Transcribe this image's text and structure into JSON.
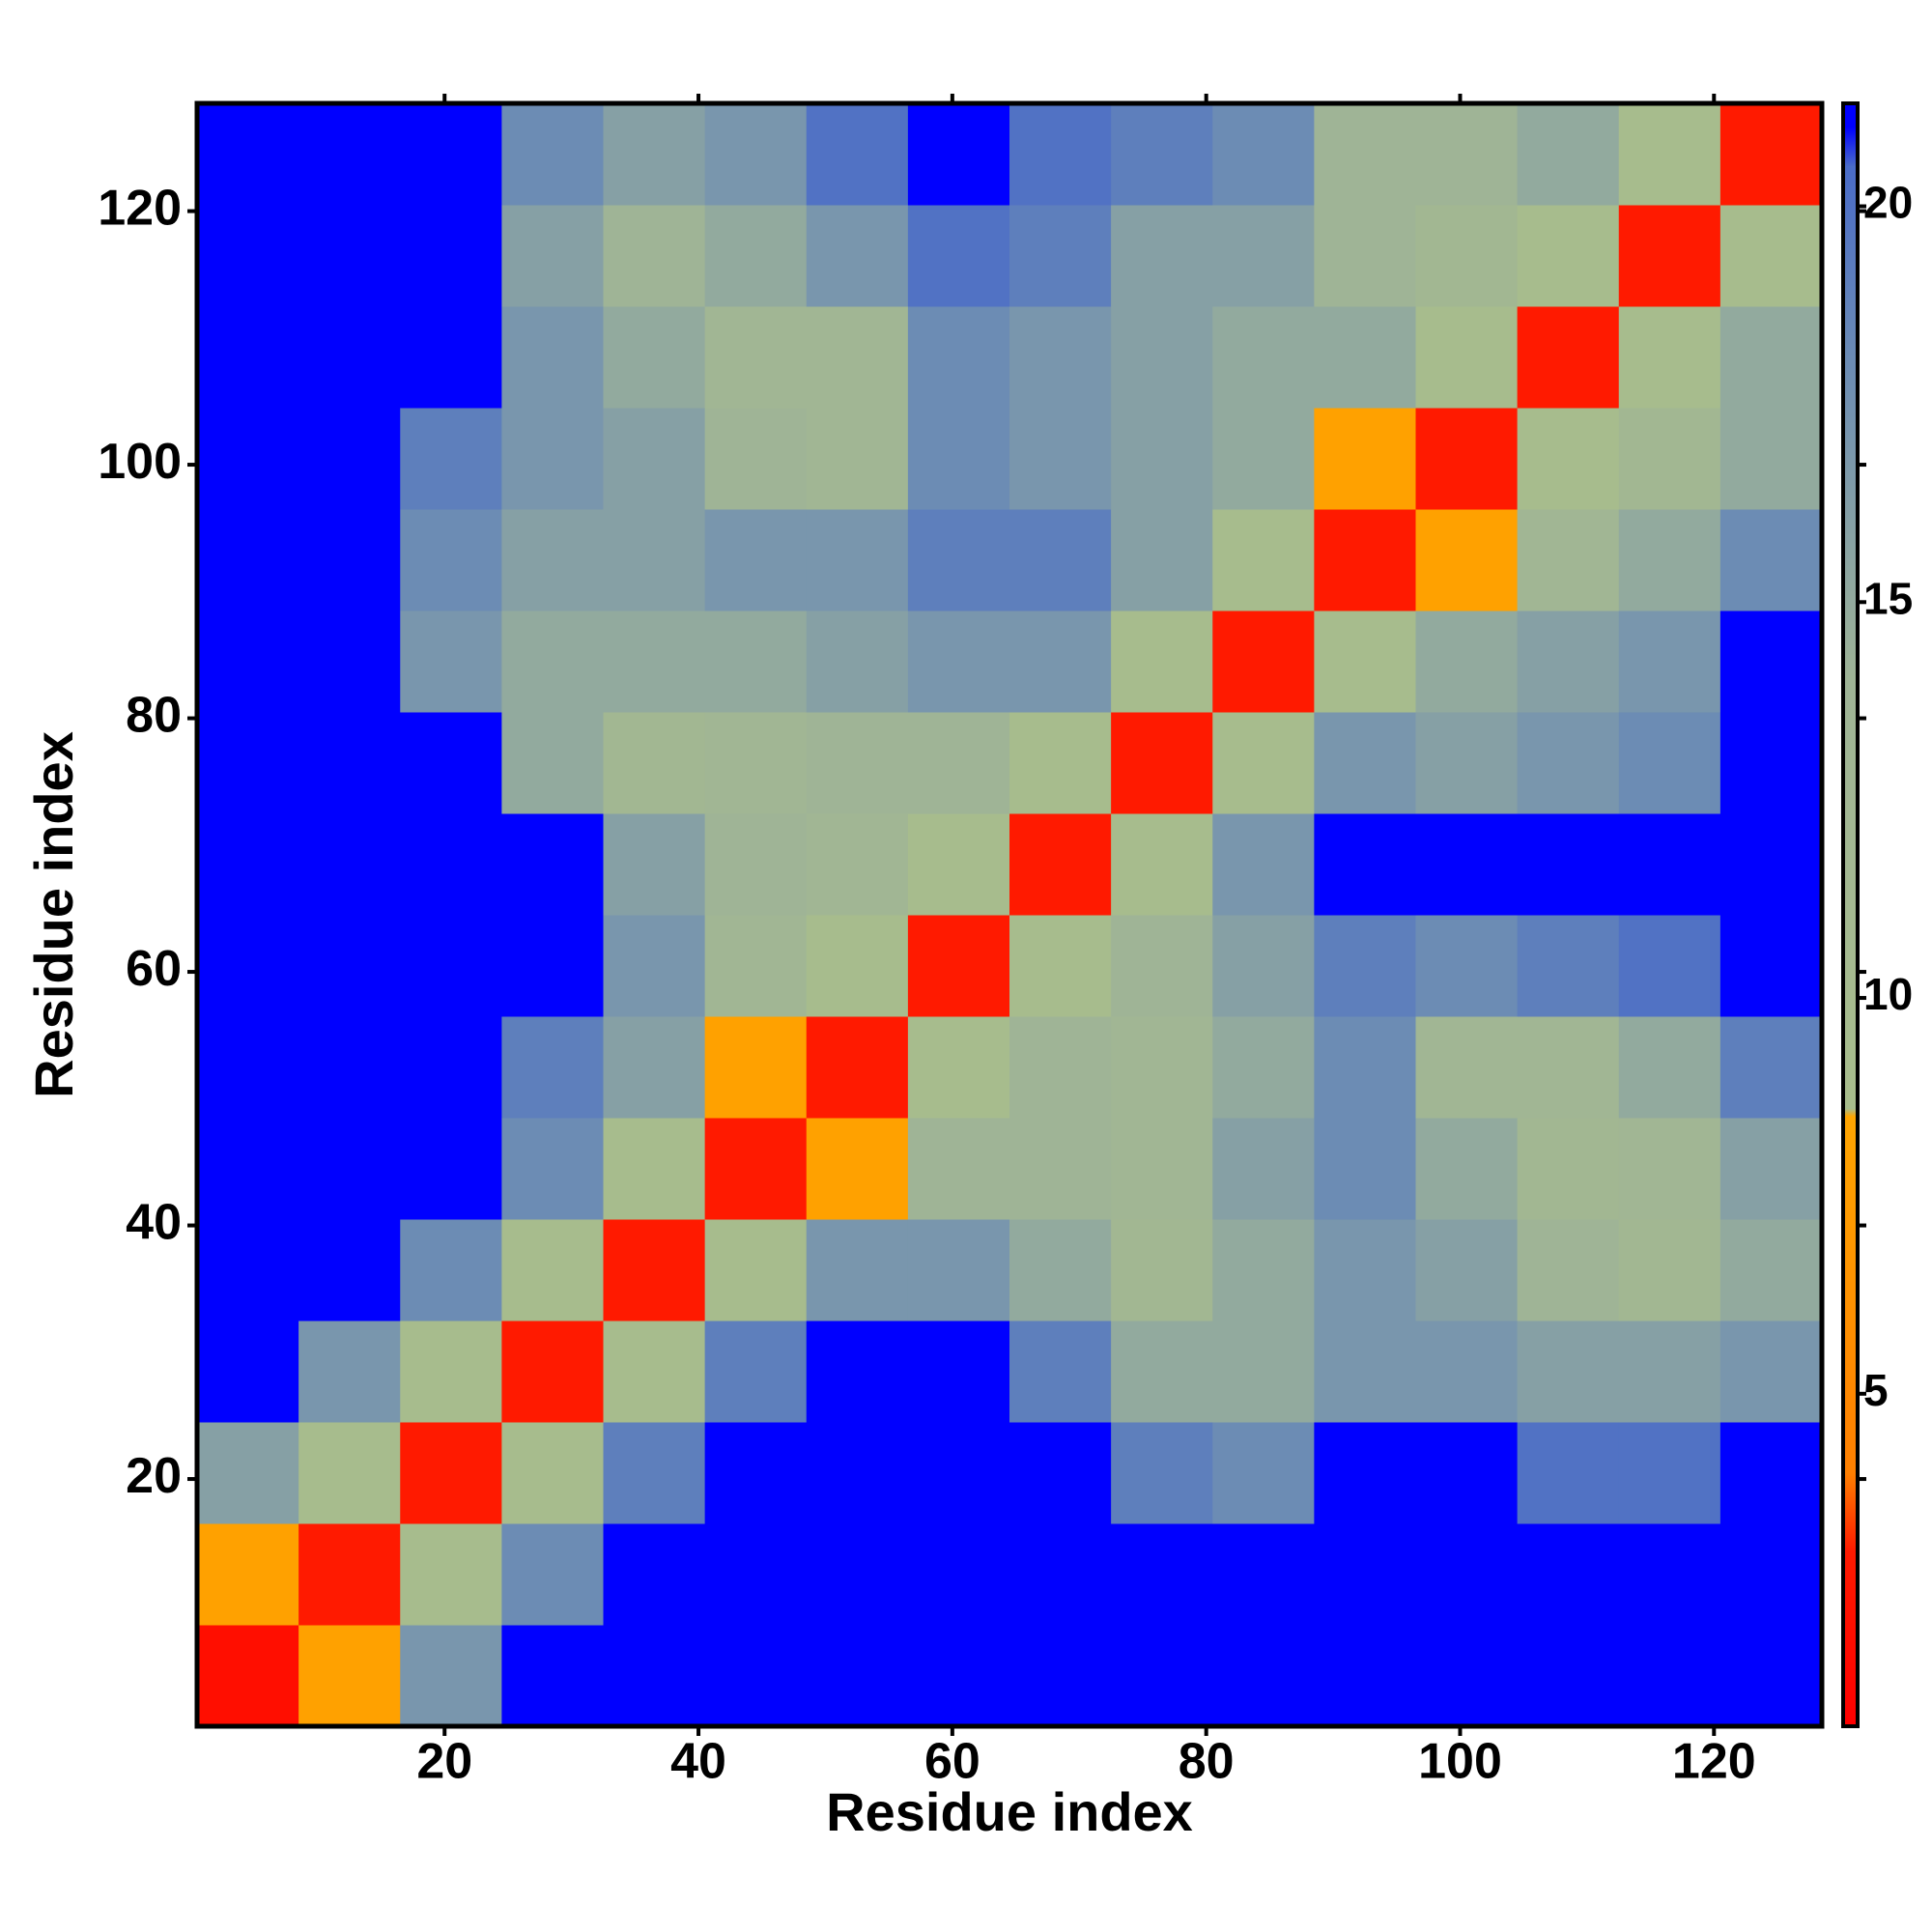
{
  "chart_data": {
    "type": "heatmap",
    "x_label": "Residue index",
    "y_label": "Residue index",
    "x": [
      4.5,
      12.5,
      20.5,
      28.5,
      36.5,
      44.5,
      52.5,
      60.5,
      68.5,
      76.5,
      84.5,
      92.5,
      100.5,
      108.5,
      116.5,
      124.5
    ],
    "y": [
      4.5,
      12.5,
      20.5,
      28.5,
      36.5,
      44.5,
      52.5,
      60.5,
      68.5,
      76.5,
      84.5,
      92.5,
      100.5,
      108.5,
      116.5,
      124.5
    ],
    "z": [
      [
        2,
        8,
        17,
        21,
        21,
        21,
        21,
        21,
        21,
        21,
        21,
        21,
        21,
        21,
        21,
        21
      ],
      [
        8,
        3,
        9,
        18,
        21,
        21,
        21,
        21,
        21,
        21,
        21,
        21,
        21,
        21,
        21,
        21
      ],
      [
        16,
        9,
        3,
        9,
        19,
        21,
        21,
        21,
        21,
        19,
        18,
        21,
        21,
        20,
        20,
        21
      ],
      [
        21,
        17,
        9,
        3,
        9,
        19,
        21,
        21,
        19,
        15,
        15,
        17,
        17,
        16,
        16,
        17
      ],
      [
        21,
        21,
        18,
        9,
        3,
        9,
        17,
        17,
        15,
        12,
        15,
        17,
        16,
        14,
        12,
        15
      ],
      [
        21,
        21,
        21,
        18,
        9,
        3,
        8,
        14,
        14,
        13,
        16,
        18,
        15,
        12,
        13,
        16
      ],
      [
        21,
        21,
        21,
        19,
        16,
        8,
        3,
        9,
        14,
        13,
        15,
        18,
        13,
        13,
        15,
        19
      ],
      [
        21,
        21,
        21,
        21,
        17,
        13,
        9,
        3,
        9,
        14,
        16,
        19,
        18,
        19,
        20,
        21
      ],
      [
        21,
        21,
        21,
        21,
        16,
        14,
        13,
        9,
        3,
        9,
        17,
        21,
        21,
        21,
        21,
        21
      ],
      [
        21,
        21,
        21,
        15,
        12,
        13,
        14,
        14,
        9,
        3,
        9,
        17,
        16,
        17,
        18,
        21
      ],
      [
        21,
        21,
        17,
        15,
        15,
        15,
        16,
        17,
        17,
        9,
        3,
        9,
        15,
        16,
        17,
        21
      ],
      [
        21,
        21,
        18,
        16,
        16,
        17,
        17,
        19,
        19,
        16,
        9,
        3,
        8,
        13,
        15,
        18
      ],
      [
        21,
        21,
        19,
        17,
        16,
        14,
        13,
        18,
        17,
        16,
        15,
        8,
        3,
        9,
        12,
        15
      ],
      [
        21,
        21,
        21,
        17,
        15,
        13,
        13,
        18,
        17,
        16,
        15,
        15,
        9,
        3,
        9,
        15
      ],
      [
        21,
        21,
        21,
        16,
        14,
        15,
        17,
        20,
        19,
        16,
        16,
        14,
        12,
        9,
        3,
        9
      ],
      [
        21,
        21,
        21,
        18,
        16,
        17,
        20,
        21,
        20,
        19,
        18,
        14,
        14,
        15,
        9,
        3
      ]
    ],
    "xlim": [
      0.5,
      128.5
    ],
    "ylim": [
      0.5,
      128.5
    ],
    "xticks": [
      20,
      40,
      60,
      80,
      100,
      120
    ],
    "yticks": [
      20,
      40,
      60,
      80,
      100,
      120
    ],
    "zlim": [
      0.8,
      21.3
    ],
    "zticks": [
      5,
      10,
      15,
      20
    ],
    "colorscale": [
      [
        0.8,
        "#ff0000"
      ],
      [
        3,
        "#ff1a00"
      ],
      [
        4,
        "#ff7f00"
      ],
      [
        8.5,
        "#ffa500"
      ],
      [
        8.6,
        "#a8bd8c"
      ],
      [
        14,
        "#9fb496"
      ],
      [
        18,
        "#6c8cb4"
      ],
      [
        20.5,
        "#4a6cc8"
      ],
      [
        21,
        "#0000ff"
      ]
    ]
  }
}
